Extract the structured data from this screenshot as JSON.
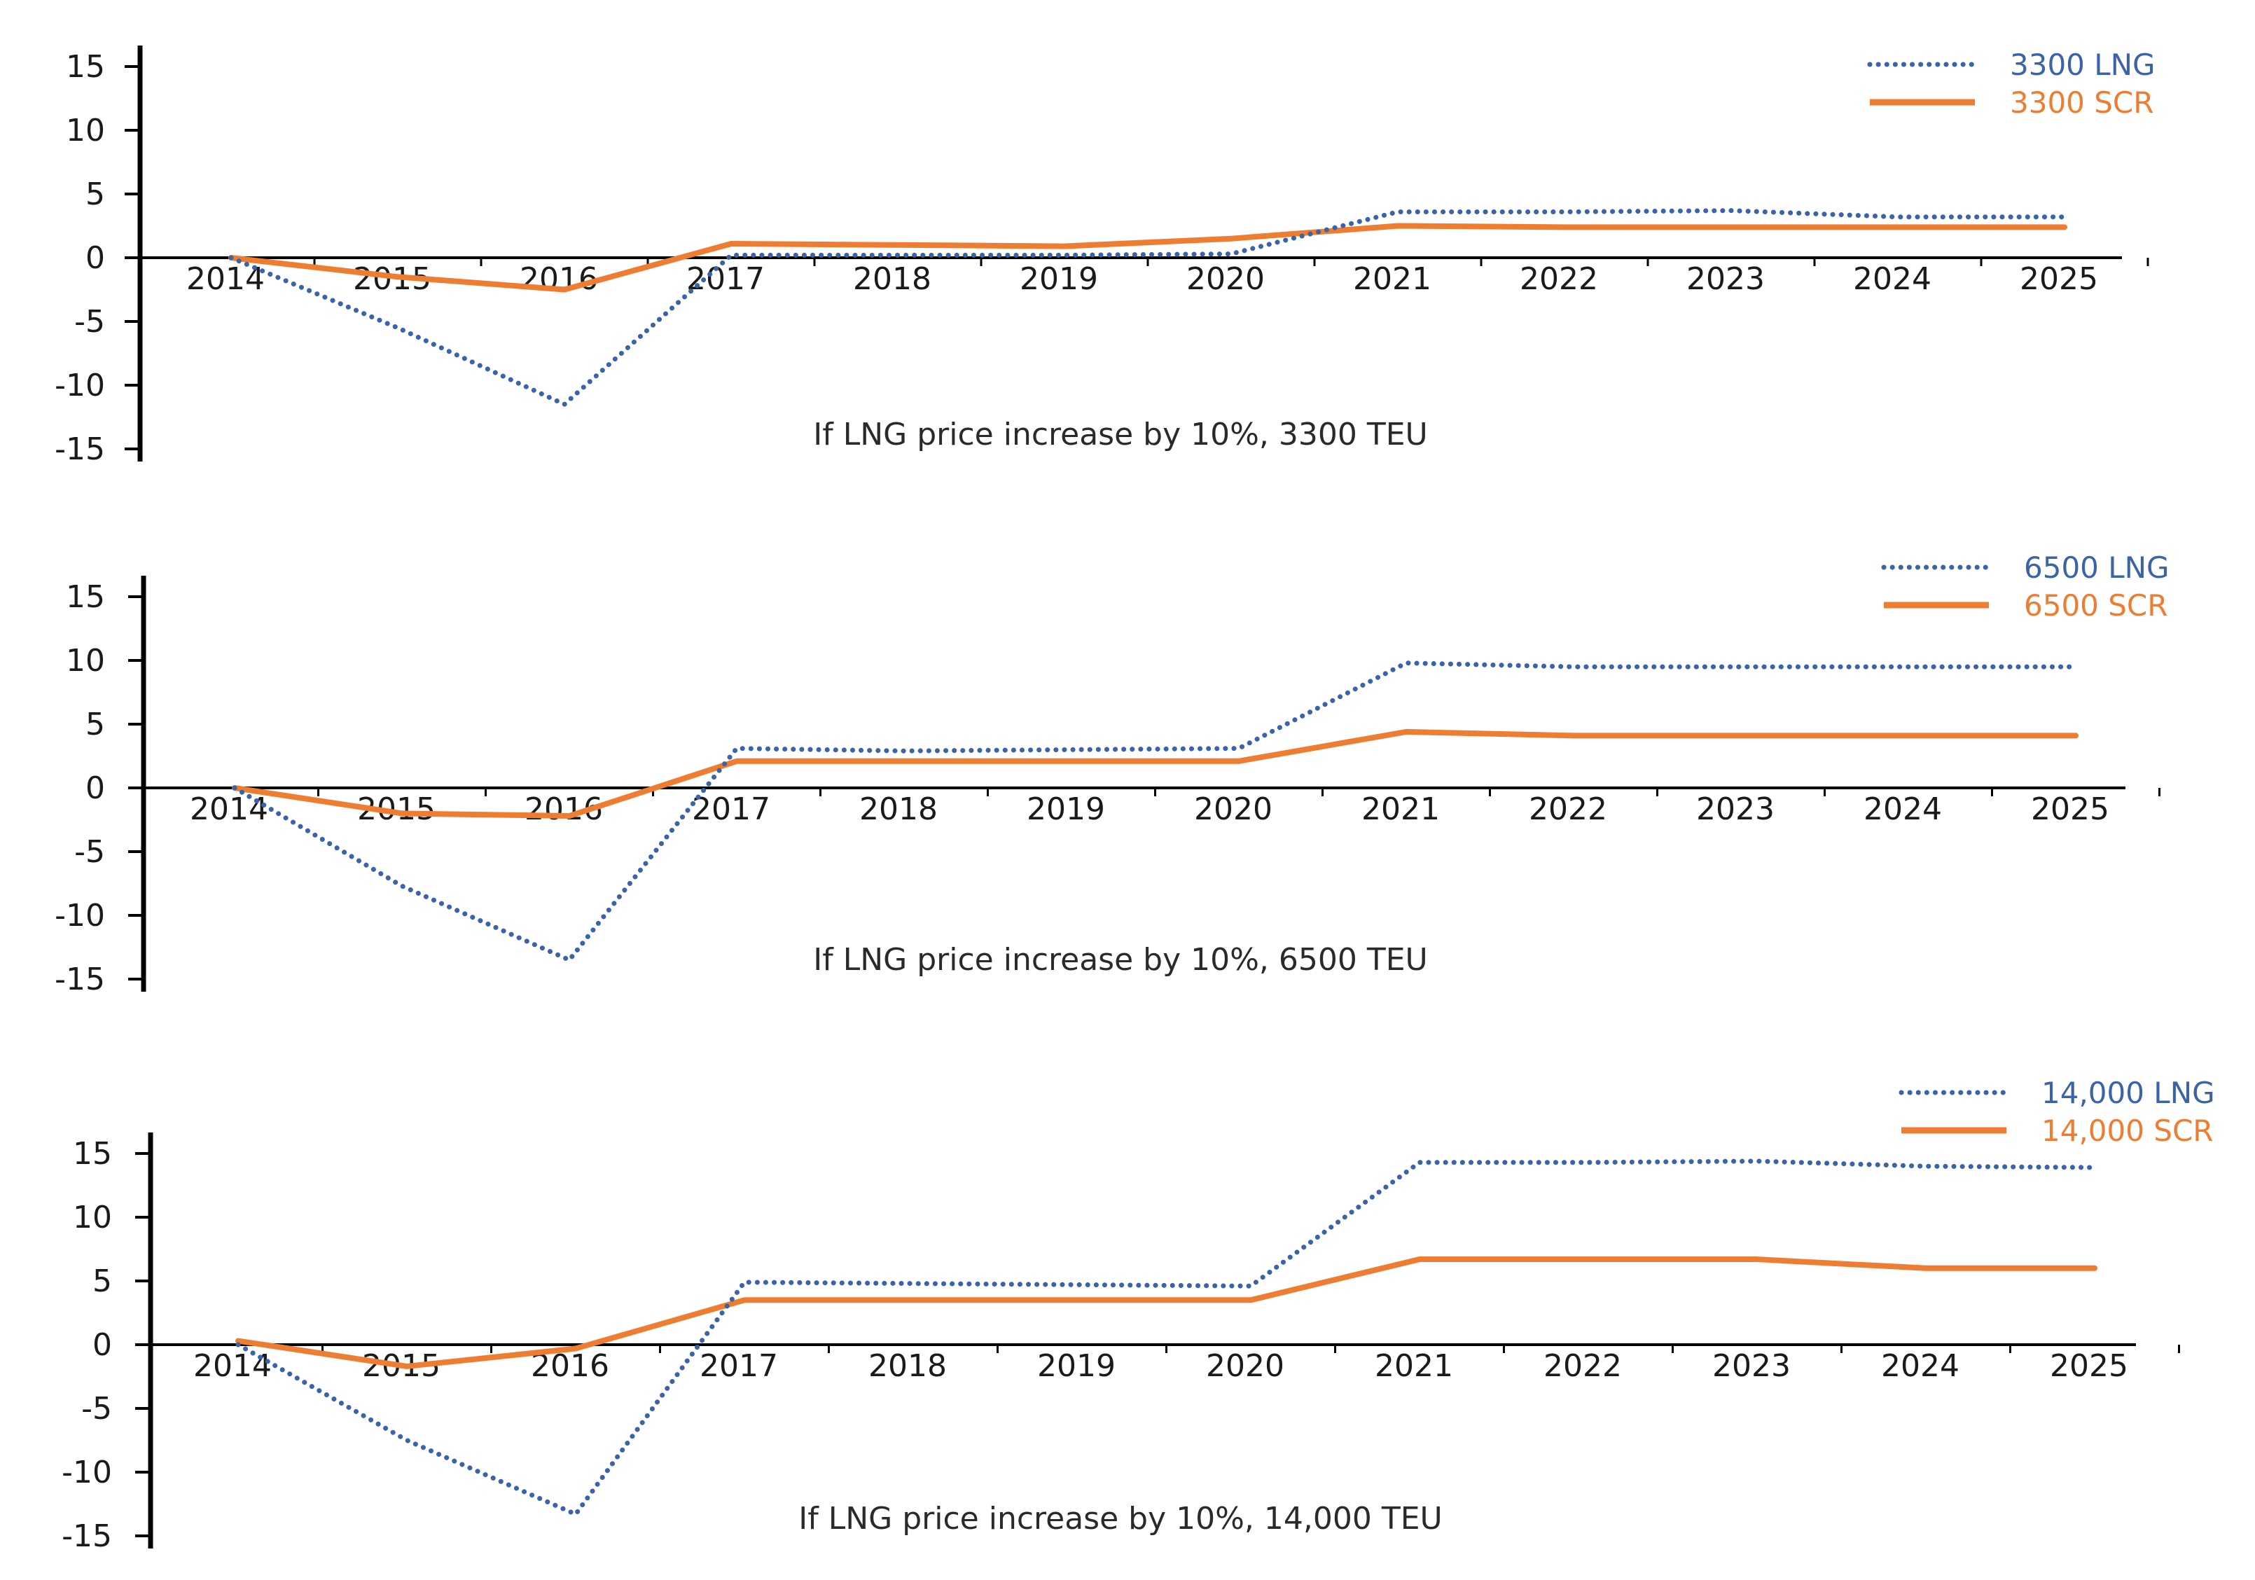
{
  "chart_data": [
    {
      "type": "line",
      "title": "If LNG price increase by 10%, 3300 TEU",
      "x": [
        "2014",
        "2015",
        "2016",
        "2017",
        "2018",
        "2019",
        "2020",
        "2021",
        "2022",
        "2023",
        "2024",
        "2025"
      ],
      "yticks": [
        "15",
        "10",
        "5",
        "0",
        "-5",
        "-10",
        "-15"
      ],
      "ylim": [
        -15,
        15
      ],
      "legend_position": "top-right",
      "series": [
        {
          "name": "3300 LNG",
          "style": "dotted",
          "color": "#3a63a8",
          "values": [
            0,
            -5.5,
            -11.5,
            0.2,
            0.2,
            0.2,
            0.3,
            3.6,
            3.6,
            3.7,
            3.2,
            3.2
          ]
        },
        {
          "name": "3300 SCR",
          "style": "solid",
          "color": "#ee7d31",
          "values": [
            0,
            -1.5,
            -2.5,
            1.1,
            1.0,
            0.9,
            1.5,
            2.5,
            2.4,
            2.4,
            2.4,
            2.4
          ]
        }
      ]
    },
    {
      "type": "line",
      "title": "If LNG price increase by 10%, 6500 TEU",
      "x": [
        "2014",
        "2015",
        "2016",
        "2017",
        "2018",
        "2019",
        "2020",
        "2021",
        "2022",
        "2023",
        "2024",
        "2025"
      ],
      "yticks": [
        "15",
        "10",
        "5",
        "0",
        "-5",
        "-10",
        "-15"
      ],
      "ylim": [
        -15,
        15
      ],
      "legend_position": "top-right",
      "series": [
        {
          "name": "6500 LNG",
          "style": "dotted",
          "color": "#3a63a8",
          "values": [
            0,
            -7.7,
            -13.5,
            3.1,
            2.9,
            3.0,
            3.1,
            9.8,
            9.5,
            9.5,
            9.5,
            9.5
          ]
        },
        {
          "name": "6500 SCR",
          "style": "solid",
          "color": "#ee7d31",
          "values": [
            0,
            -2.0,
            -2.2,
            2.1,
            2.1,
            2.1,
            2.1,
            4.4,
            4.1,
            4.1,
            4.1,
            4.1
          ]
        }
      ]
    },
    {
      "type": "line",
      "title": "If LNG price increase by 10%, 14,000 TEU",
      "x": [
        "2014",
        "2015",
        "2016",
        "2017",
        "2018",
        "2019",
        "2020",
        "2021",
        "2022",
        "2023",
        "2024",
        "2025"
      ],
      "yticks": [
        "15",
        "10",
        "5",
        "0",
        "-5",
        "-10",
        "-15"
      ],
      "ylim": [
        -15,
        15
      ],
      "legend_position": "top-right",
      "series": [
        {
          "name": "14,000 LNG",
          "style": "dotted",
          "color": "#3a63a8",
          "values": [
            0,
            -7.5,
            -13.3,
            4.9,
            4.8,
            4.7,
            4.6,
            14.3,
            14.3,
            14.4,
            14.0,
            13.9
          ]
        },
        {
          "name": "14,000 SCR",
          "style": "solid",
          "color": "#ee7d31",
          "values": [
            0.3,
            -1.7,
            -0.3,
            3.5,
            3.5,
            3.5,
            3.5,
            6.7,
            6.7,
            6.7,
            6.0,
            6.0
          ]
        }
      ]
    }
  ]
}
